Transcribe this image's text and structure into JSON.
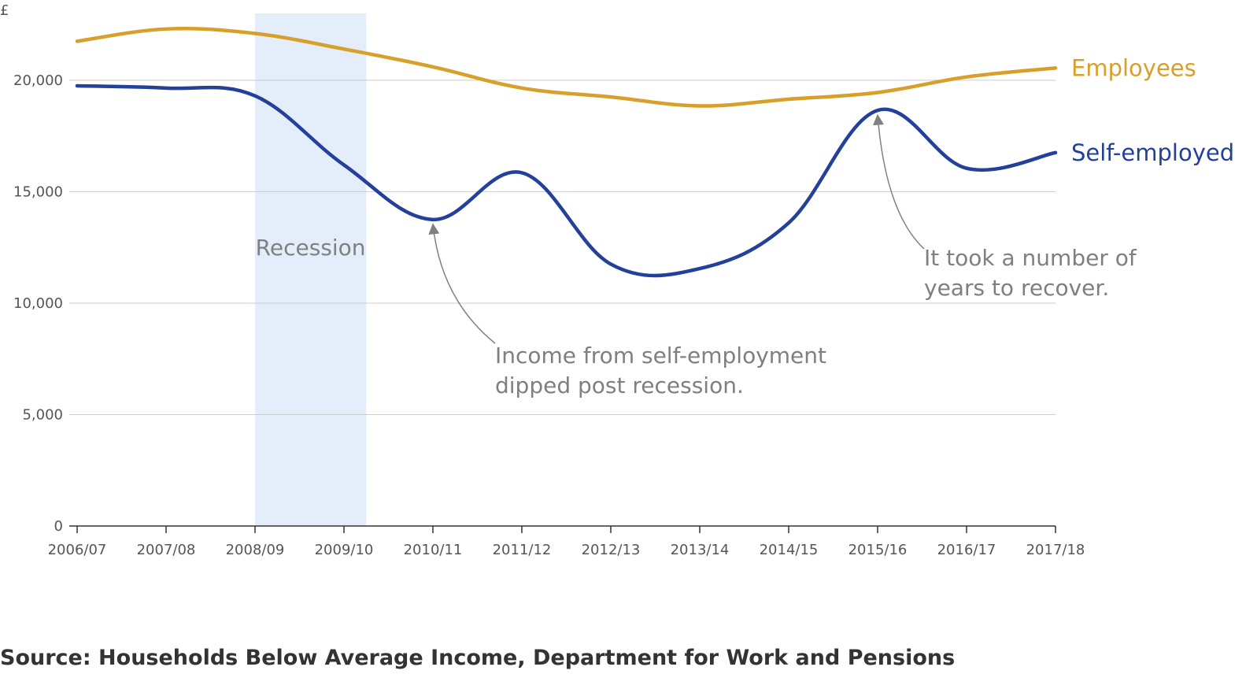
{
  "source": "Source: Households Below Average Income, Department for Work and Pensions",
  "chart_data": {
    "type": "line",
    "y_unit_label": "£",
    "categories": [
      "2006/07",
      "2007/08",
      "2008/09",
      "2009/10",
      "2010/11",
      "2011/12",
      "2012/13",
      "2013/14",
      "2014/15",
      "2015/16",
      "2016/17",
      "2017/18"
    ],
    "y_ticks": [
      0,
      5000,
      10000,
      15000,
      20000
    ],
    "y_tick_labels": [
      "0",
      "5,000",
      "10,000",
      "15,000",
      "20,000"
    ],
    "ylim": [
      0,
      23000
    ],
    "grid": true,
    "series": [
      {
        "name": "Employees",
        "color": "#d8a02a",
        "values": [
          21750,
          22300,
          22100,
          21400,
          20600,
          19650,
          19250,
          18850,
          19150,
          19450,
          20150,
          20550
        ]
      },
      {
        "name": "Self-employed",
        "color": "#23409a",
        "values": [
          19750,
          19650,
          19300,
          16200,
          13750,
          15850,
          11750,
          11550,
          13600,
          18650,
          16050,
          16750
        ]
      }
    ],
    "shaded_region": {
      "label": "Recession",
      "from_index": 2,
      "to_index": 3.25,
      "color": "#e3eefa"
    },
    "annotations": [
      {
        "lines": [
          "Income from self-employment",
          "dipped post recession."
        ],
        "target_index": 4,
        "series": 1
      },
      {
        "lines": [
          "It took a number of",
          "years to recover."
        ],
        "target_index": 9,
        "series": 1
      }
    ]
  }
}
